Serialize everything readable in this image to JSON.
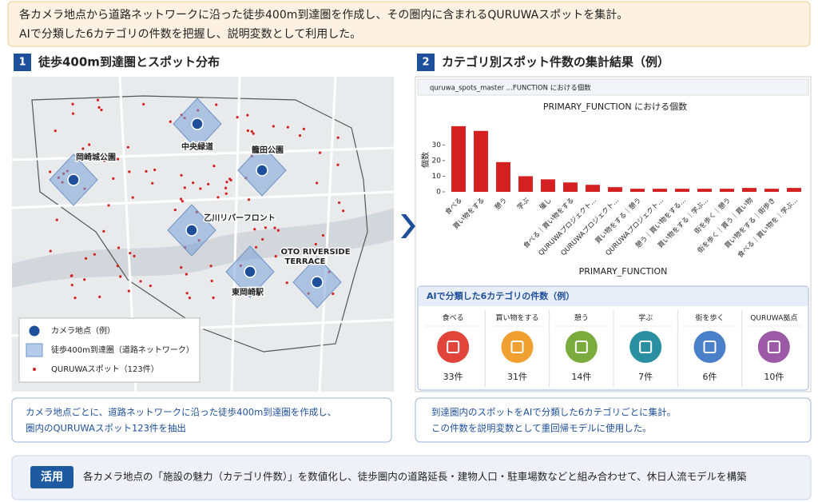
{
  "header": {
    "lines": [
      "各カメラ地点から道路ネットワークに沿った徒歩400m到達圏を作成し、その圏内に含まれるQURUWAスポットを集計。",
      "AIで分類した6カテゴリの件数を把握し、説明変数として利用した。"
    ]
  },
  "section1": {
    "number": "1",
    "title": "徒歩400m到達圏とスポット分布"
  },
  "map": {
    "places": [
      "岡崎城公園",
      "中央緑道",
      "籠田公園",
      "乙川リバーフロント",
      "OTO RIVERSIDE",
      "TERRACE",
      "東岡崎駅"
    ],
    "legend": [
      "カメラ地点（例）",
      "徒歩400m到達圏（道路ネットワーク）",
      "QURUWAスポット（123件）"
    ]
  },
  "section2": {
    "number": "2",
    "title": "カテゴリ別スポット件数の集計結果（例）",
    "tab": "quruwa_spots_master ...FUNCTION における個数"
  },
  "chart_data": {
    "type": "bar",
    "title": "PRIMARY_FUNCTION における個数",
    "x_label": "PRIMARY_FUNCTION",
    "y_label": "個数",
    "categories": [
      "食べる",
      "買い物をする",
      "憩う",
      "学ぶ",
      "催し",
      "食べる｜買い物をする",
      "QURUWAプロジェクト...",
      "QURUWAプロジェクト...",
      "買い物をする｜憩う",
      "QURUWAプロジェクト...",
      "憩う｜買い物をする...",
      "買い物をする｜学ぶ...",
      "街を歩く｜憩う",
      "街を歩く｜買う｜買い物",
      "買い物をする｜街歩き",
      "食べる｜買い物を｜学ぶ..."
    ],
    "values": [
      42,
      39,
      19,
      10,
      8,
      6,
      4.5,
      3,
      2,
      2,
      2,
      2,
      2,
      2.5,
      2,
      2.5
    ],
    "color": "#d42020",
    "ylim": [
      0,
      45
    ],
    "yticks": [
      0,
      10,
      20,
      30
    ],
    "grid": false
  },
  "table": {
    "title": "AIで分類した6カテゴリの件数（例）",
    "columns": [
      {
        "name": "食べる",
        "count": "33件"
      },
      {
        "name": "買い物をする",
        "count": "31件"
      },
      {
        "name": "憩う",
        "count": "14件"
      },
      {
        "name": "学ぶ",
        "count": "7件"
      },
      {
        "name": "街を歩く",
        "count": "6件"
      },
      {
        "name": "QURUWA拠点",
        "count": "10件"
      }
    ]
  },
  "captions": {
    "left": [
      "カメラ地点ごとに、道路ネットワークに沿った徒歩400m到達圏を作成し、",
      "圏内のQURUWAスポット123件を抽出"
    ],
    "right": [
      "到達圏内のスポットをAIで分類した6カテゴリごとに集計。",
      "この件数を説明変数として重回帰モデルに使用した。"
    ]
  },
  "footer": {
    "tag": "活用",
    "text": "各カメラ地点の「施設の魅力（カテゴリ件数）」を数値化し、徒歩圏内の道路延長・建物人口・駐車場数などと組み合わせて、休日人流モデルを構築"
  }
}
